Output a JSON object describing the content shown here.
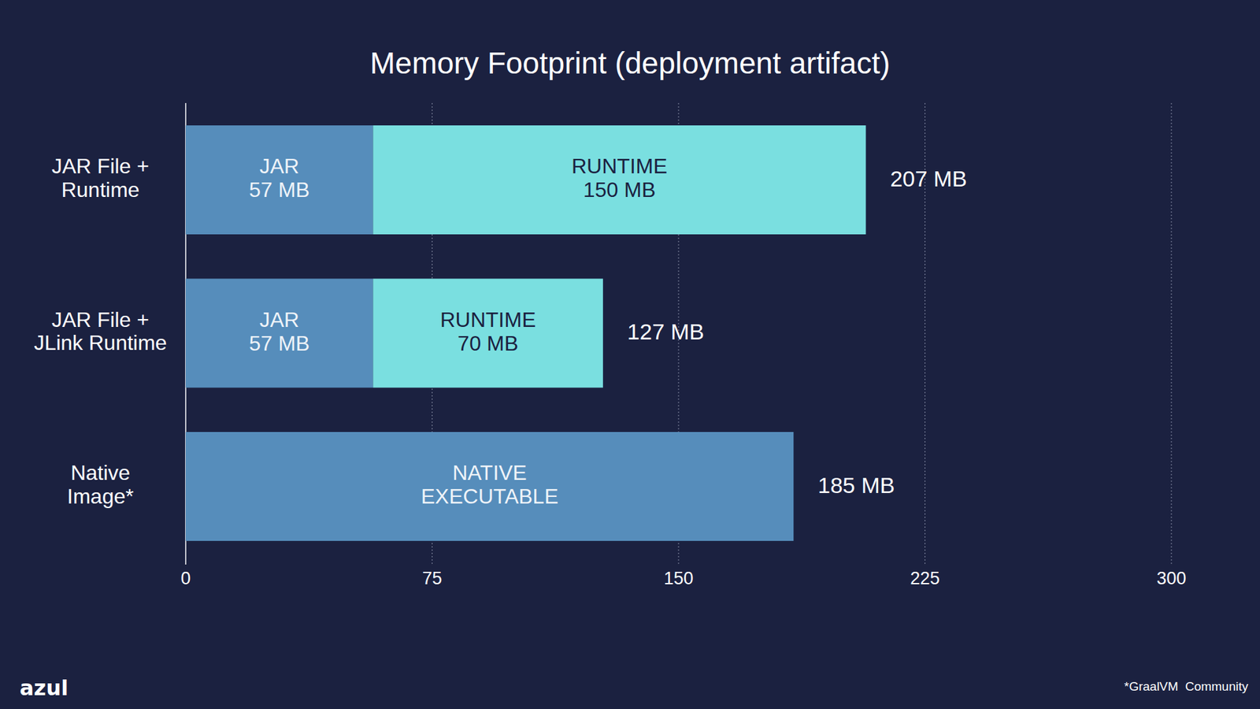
{
  "chart_data": {
    "type": "bar",
    "title": "Memory Footprint (deployment artifact)",
    "orientation": "horizontal",
    "stacked": true,
    "data_labels": true,
    "grid": true,
    "categories": [
      "JAR File +\nRuntime",
      "JAR File +\nJLink Runtime",
      "Native\nImage*"
    ],
    "series": [
      {
        "name": "JAR",
        "color": "#568dbb",
        "values": [
          57,
          57,
          null
        ],
        "value_labels": [
          "57 MB",
          "57 MB",
          null
        ]
      },
      {
        "name": "RUNTIME",
        "color": "#7adfe0",
        "values": [
          150,
          70,
          null
        ],
        "value_labels": [
          "150 MB",
          "70 MB",
          null
        ]
      },
      {
        "name": "NATIVE EXECUTABLE",
        "color": "#568dbb",
        "values": [
          null,
          null,
          185
        ],
        "value_labels": [
          null,
          null,
          null
        ]
      }
    ],
    "totals": [
      207,
      127,
      185
    ],
    "total_labels": [
      "207 MB",
      "127 MB",
      "185 MB"
    ],
    "xlim": [
      0,
      300
    ],
    "xticks": [
      0,
      75,
      150,
      225,
      300
    ],
    "footnote": "*GraalVM  Community",
    "logo": "azul"
  }
}
